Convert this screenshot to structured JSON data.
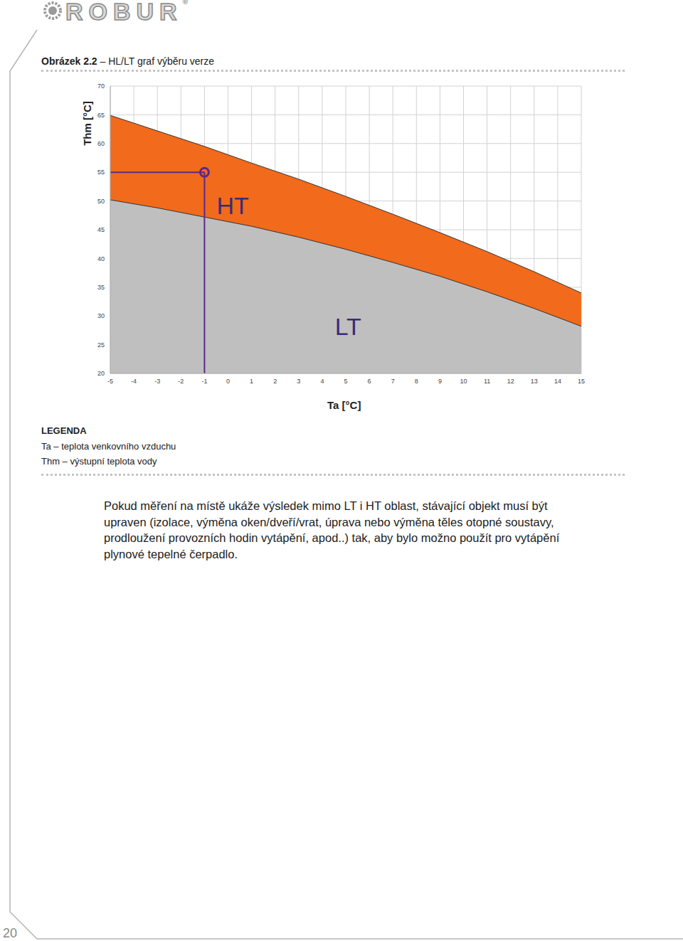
{
  "header": {
    "logo": "ROBUR",
    "logo_mark": "®"
  },
  "figure": {
    "label": "Obrázek 2.2",
    "title": "– HL/LT graf výběru verze"
  },
  "chart_data": {
    "type": "area",
    "x_label": "Ta [°C]",
    "y_label": "Thm [°C]",
    "x": [
      -5,
      -3,
      -1,
      1,
      3,
      5,
      7,
      9,
      11,
      13,
      15
    ],
    "series": [
      {
        "name": "HT",
        "color": "#f26a1b",
        "values": [
          64.9,
          62.2,
          59.5,
          56.6,
          53.8,
          50.8,
          47.7,
          44.5,
          41.2,
          37.7,
          34.0
        ]
      },
      {
        "name": "LT",
        "color": "#bfbfbf",
        "values": [
          50.2,
          48.8,
          47.2,
          45.6,
          43.7,
          41.6,
          39.3,
          36.9,
          34.2,
          31.3,
          28.2
        ]
      }
    ],
    "xlim": [
      -5,
      15
    ],
    "xticks": [
      -5,
      -4,
      -3,
      -2,
      -1,
      0,
      1,
      2,
      3,
      4,
      5,
      6,
      7,
      8,
      9,
      10,
      11,
      12,
      13,
      14,
      15
    ],
    "ylim": [
      20,
      70
    ],
    "yticks": [
      20,
      25,
      30,
      35,
      40,
      45,
      50,
      55,
      60,
      65,
      70
    ],
    "grid": true,
    "annotations": [
      {
        "text": "HT",
        "x": 0.2,
        "y": 49.2,
        "color": "#3b2a7a"
      },
      {
        "text": "LT",
        "x": 5.1,
        "y": 28.2,
        "color": "#3b2a7a"
      }
    ],
    "marker_point": {
      "x": -1,
      "y": 55,
      "color": "#5a2a88"
    }
  },
  "legend_block": {
    "heading": "LEGENDA",
    "lines": [
      "Ta – teplota venkovního vzduchu",
      "Thm – výstupní teplota vody"
    ]
  },
  "paragraph_lines": [
    "Pokud měření na místě ukáže výsledek mimo LT i HT oblast, stávající objekt musí být",
    "upraven (izolace, výměna oken/dveří/vrat, úprava nebo výměna těles otopné soustavy,",
    "prodloužení provozních hodin vytápění, apod..) tak, aby bylo možno použít pro vytápění",
    "plynové tepelné čerpadlo."
  ],
  "page_number": 20
}
